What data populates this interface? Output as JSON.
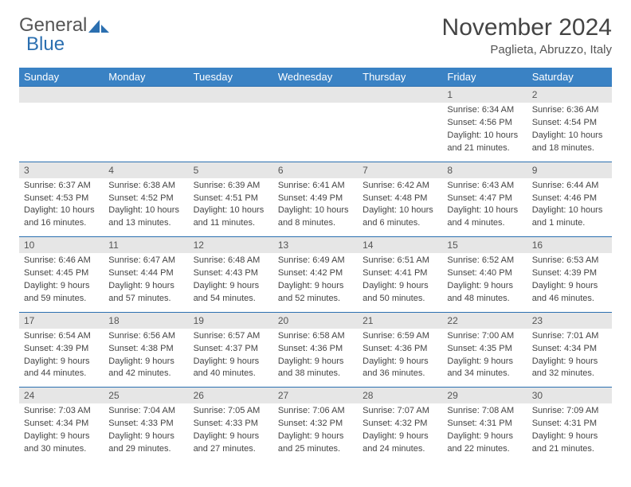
{
  "logo": {
    "text1": "General",
    "text2": "Blue"
  },
  "title": "November 2024",
  "location": "Paglieta, Abruzzo, Italy",
  "colors": {
    "header_bg": "#3a82c4",
    "daynum_bg": "#e6e6e6",
    "border": "#2b6fb0",
    "text": "#444444"
  },
  "day_headers": [
    "Sunday",
    "Monday",
    "Tuesday",
    "Wednesday",
    "Thursday",
    "Friday",
    "Saturday"
  ],
  "weeks": [
    [
      null,
      null,
      null,
      null,
      null,
      {
        "n": "1",
        "sr": "Sunrise: 6:34 AM",
        "ss": "Sunset: 4:56 PM",
        "dl1": "Daylight: 10 hours",
        "dl2": "and 21 minutes."
      },
      {
        "n": "2",
        "sr": "Sunrise: 6:36 AM",
        "ss": "Sunset: 4:54 PM",
        "dl1": "Daylight: 10 hours",
        "dl2": "and 18 minutes."
      }
    ],
    [
      {
        "n": "3",
        "sr": "Sunrise: 6:37 AM",
        "ss": "Sunset: 4:53 PM",
        "dl1": "Daylight: 10 hours",
        "dl2": "and 16 minutes."
      },
      {
        "n": "4",
        "sr": "Sunrise: 6:38 AM",
        "ss": "Sunset: 4:52 PM",
        "dl1": "Daylight: 10 hours",
        "dl2": "and 13 minutes."
      },
      {
        "n": "5",
        "sr": "Sunrise: 6:39 AM",
        "ss": "Sunset: 4:51 PM",
        "dl1": "Daylight: 10 hours",
        "dl2": "and 11 minutes."
      },
      {
        "n": "6",
        "sr": "Sunrise: 6:41 AM",
        "ss": "Sunset: 4:49 PM",
        "dl1": "Daylight: 10 hours",
        "dl2": "and 8 minutes."
      },
      {
        "n": "7",
        "sr": "Sunrise: 6:42 AM",
        "ss": "Sunset: 4:48 PM",
        "dl1": "Daylight: 10 hours",
        "dl2": "and 6 minutes."
      },
      {
        "n": "8",
        "sr": "Sunrise: 6:43 AM",
        "ss": "Sunset: 4:47 PM",
        "dl1": "Daylight: 10 hours",
        "dl2": "and 4 minutes."
      },
      {
        "n": "9",
        "sr": "Sunrise: 6:44 AM",
        "ss": "Sunset: 4:46 PM",
        "dl1": "Daylight: 10 hours",
        "dl2": "and 1 minute."
      }
    ],
    [
      {
        "n": "10",
        "sr": "Sunrise: 6:46 AM",
        "ss": "Sunset: 4:45 PM",
        "dl1": "Daylight: 9 hours",
        "dl2": "and 59 minutes."
      },
      {
        "n": "11",
        "sr": "Sunrise: 6:47 AM",
        "ss": "Sunset: 4:44 PM",
        "dl1": "Daylight: 9 hours",
        "dl2": "and 57 minutes."
      },
      {
        "n": "12",
        "sr": "Sunrise: 6:48 AM",
        "ss": "Sunset: 4:43 PM",
        "dl1": "Daylight: 9 hours",
        "dl2": "and 54 minutes."
      },
      {
        "n": "13",
        "sr": "Sunrise: 6:49 AM",
        "ss": "Sunset: 4:42 PM",
        "dl1": "Daylight: 9 hours",
        "dl2": "and 52 minutes."
      },
      {
        "n": "14",
        "sr": "Sunrise: 6:51 AM",
        "ss": "Sunset: 4:41 PM",
        "dl1": "Daylight: 9 hours",
        "dl2": "and 50 minutes."
      },
      {
        "n": "15",
        "sr": "Sunrise: 6:52 AM",
        "ss": "Sunset: 4:40 PM",
        "dl1": "Daylight: 9 hours",
        "dl2": "and 48 minutes."
      },
      {
        "n": "16",
        "sr": "Sunrise: 6:53 AM",
        "ss": "Sunset: 4:39 PM",
        "dl1": "Daylight: 9 hours",
        "dl2": "and 46 minutes."
      }
    ],
    [
      {
        "n": "17",
        "sr": "Sunrise: 6:54 AM",
        "ss": "Sunset: 4:39 PM",
        "dl1": "Daylight: 9 hours",
        "dl2": "and 44 minutes."
      },
      {
        "n": "18",
        "sr": "Sunrise: 6:56 AM",
        "ss": "Sunset: 4:38 PM",
        "dl1": "Daylight: 9 hours",
        "dl2": "and 42 minutes."
      },
      {
        "n": "19",
        "sr": "Sunrise: 6:57 AM",
        "ss": "Sunset: 4:37 PM",
        "dl1": "Daylight: 9 hours",
        "dl2": "and 40 minutes."
      },
      {
        "n": "20",
        "sr": "Sunrise: 6:58 AM",
        "ss": "Sunset: 4:36 PM",
        "dl1": "Daylight: 9 hours",
        "dl2": "and 38 minutes."
      },
      {
        "n": "21",
        "sr": "Sunrise: 6:59 AM",
        "ss": "Sunset: 4:36 PM",
        "dl1": "Daylight: 9 hours",
        "dl2": "and 36 minutes."
      },
      {
        "n": "22",
        "sr": "Sunrise: 7:00 AM",
        "ss": "Sunset: 4:35 PM",
        "dl1": "Daylight: 9 hours",
        "dl2": "and 34 minutes."
      },
      {
        "n": "23",
        "sr": "Sunrise: 7:01 AM",
        "ss": "Sunset: 4:34 PM",
        "dl1": "Daylight: 9 hours",
        "dl2": "and 32 minutes."
      }
    ],
    [
      {
        "n": "24",
        "sr": "Sunrise: 7:03 AM",
        "ss": "Sunset: 4:34 PM",
        "dl1": "Daylight: 9 hours",
        "dl2": "and 30 minutes."
      },
      {
        "n": "25",
        "sr": "Sunrise: 7:04 AM",
        "ss": "Sunset: 4:33 PM",
        "dl1": "Daylight: 9 hours",
        "dl2": "and 29 minutes."
      },
      {
        "n": "26",
        "sr": "Sunrise: 7:05 AM",
        "ss": "Sunset: 4:33 PM",
        "dl1": "Daylight: 9 hours",
        "dl2": "and 27 minutes."
      },
      {
        "n": "27",
        "sr": "Sunrise: 7:06 AM",
        "ss": "Sunset: 4:32 PM",
        "dl1": "Daylight: 9 hours",
        "dl2": "and 25 minutes."
      },
      {
        "n": "28",
        "sr": "Sunrise: 7:07 AM",
        "ss": "Sunset: 4:32 PM",
        "dl1": "Daylight: 9 hours",
        "dl2": "and 24 minutes."
      },
      {
        "n": "29",
        "sr": "Sunrise: 7:08 AM",
        "ss": "Sunset: 4:31 PM",
        "dl1": "Daylight: 9 hours",
        "dl2": "and 22 minutes."
      },
      {
        "n": "30",
        "sr": "Sunrise: 7:09 AM",
        "ss": "Sunset: 4:31 PM",
        "dl1": "Daylight: 9 hours",
        "dl2": "and 21 minutes."
      }
    ]
  ]
}
